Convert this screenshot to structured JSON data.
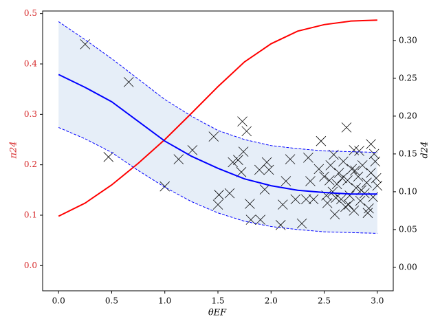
{
  "chart_data": {
    "type": "line",
    "xlabel": "θEF",
    "ylabel": "π24",
    "y2label": "d24",
    "xlim": [
      -0.15,
      3.15
    ],
    "ylim": [
      -0.05,
      0.505
    ],
    "y2lim": [
      -0.031,
      0.339
    ],
    "xticks": [
      {
        "value": 0,
        "label": "0.0"
      },
      {
        "value": 0.5,
        "label": "0.5"
      },
      {
        "value": 1,
        "label": "1.0"
      },
      {
        "value": 1.5,
        "label": "1.5"
      },
      {
        "value": 2,
        "label": "2.0"
      },
      {
        "value": 2.5,
        "label": "2.5"
      },
      {
        "value": 3,
        "label": "3.0"
      }
    ],
    "yticks": [
      {
        "value": 0,
        "label": "0.0"
      },
      {
        "value": 0.1,
        "label": "0.1"
      },
      {
        "value": 0.2,
        "label": "0.2"
      },
      {
        "value": 0.3,
        "label": "0.3"
      },
      {
        "value": 0.4,
        "label": "0.4"
      },
      {
        "value": 0.5,
        "label": "0.5"
      }
    ],
    "y2ticks": [
      {
        "value": 0,
        "label": "0.00"
      },
      {
        "value": 0.05,
        "label": "0.05"
      },
      {
        "value": 0.1,
        "label": "0.10"
      },
      {
        "value": 0.15,
        "label": "0.15"
      },
      {
        "value": 0.2,
        "label": "0.20"
      },
      {
        "value": 0.25,
        "label": "0.25"
      },
      {
        "value": 0.3,
        "label": "0.30"
      }
    ],
    "ylabel_color": "#d62728",
    "x": [
      0,
      0.25,
      0.5,
      0.75,
      1,
      1.25,
      1.5,
      1.75,
      2,
      2.25,
      2.5,
      2.75,
      3
    ],
    "series": [
      {
        "color": "#ff0000",
        "axis": "y",
        "linestyle": "solid",
        "values": [
          0.098,
          0.124,
          0.16,
          0.203,
          0.25,
          0.302,
          0.355,
          0.404,
          0.44,
          0.465,
          0.478,
          0.485,
          0.487
        ]
      },
      {
        "color": "#0000ff",
        "axis": "y2",
        "linestyle": "solid",
        "values": [
          0.255,
          0.238,
          0.219,
          0.193,
          0.167,
          0.147,
          0.131,
          0.117,
          0.108,
          0.102,
          0.099,
          0.097,
          0.097
        ]
      },
      {
        "color": "#0000ff",
        "axis": "y2",
        "linestyle": "dashed",
        "values": [
          0.325,
          0.301,
          0.276,
          0.249,
          0.222,
          0.2,
          0.181,
          0.169,
          0.161,
          0.157,
          0.154,
          0.153,
          0.152
        ]
      },
      {
        "color": "#0000ff",
        "axis": "y2",
        "linestyle": "dashed",
        "values": [
          0.185,
          0.17,
          0.152,
          0.128,
          0.106,
          0.087,
          0.072,
          0.061,
          0.054,
          0.05,
          0.047,
          0.046,
          0.045
        ]
      }
    ],
    "fill_between": [
      2,
      3
    ],
    "fill_color": "#e6eef8",
    "scatter": {
      "axis": "y2",
      "color": "#000000",
      "marker": "x",
      "x": [
        0.25,
        0.66,
        0.47,
        1.0,
        1.13,
        1.26,
        1.46,
        1.51,
        1.5,
        1.61,
        1.64,
        1.73,
        1.77,
        1.74,
        1.69,
        1.72,
        1.8,
        1.81,
        1.9,
        1.96,
        1.98,
        1.89,
        1.94,
        2.09,
        2.11,
        2.14,
        2.18,
        2.23,
        2.29,
        2.33,
        2.35,
        2.4,
        2.37,
        2.47,
        2.71,
        2.59,
        2.94,
        2.78,
        2.83,
        2.5,
        2.53,
        2.56,
        2.58,
        2.6,
        2.62,
        2.64,
        2.66,
        2.68,
        2.7,
        2.72,
        2.74,
        2.76,
        2.78,
        2.8,
        2.82,
        2.84,
        2.86,
        2.88,
        2.9,
        2.92,
        2.94,
        2.96,
        2.98,
        3.0,
        2.55,
        2.61,
        2.67,
        2.73,
        2.79,
        2.85,
        2.91,
        2.97,
        2.45,
        2.52,
        2.99
      ],
      "y": [
        0.295,
        0.245,
        0.146,
        0.107,
        0.143,
        0.155,
        0.173,
        0.096,
        0.083,
        0.098,
        0.139,
        0.193,
        0.18,
        0.153,
        0.142,
        0.126,
        0.084,
        0.063,
        0.063,
        0.139,
        0.129,
        0.129,
        0.103,
        0.056,
        0.083,
        0.114,
        0.143,
        0.09,
        0.058,
        0.09,
        0.145,
        0.09,
        0.114,
        0.167,
        0.185,
        0.149,
        0.163,
        0.155,
        0.154,
        0.12,
        0.085,
        0.135,
        0.1,
        0.07,
        0.11,
        0.125,
        0.09,
        0.14,
        0.08,
        0.115,
        0.095,
        0.13,
        0.075,
        0.105,
        0.12,
        0.088,
        0.135,
        0.098,
        0.112,
        0.078,
        0.125,
        0.093,
        0.14,
        0.108,
        0.115,
        0.092,
        0.118,
        0.083,
        0.128,
        0.102,
        0.072,
        0.15,
        0.13,
        0.095,
        0.118
      ]
    }
  }
}
